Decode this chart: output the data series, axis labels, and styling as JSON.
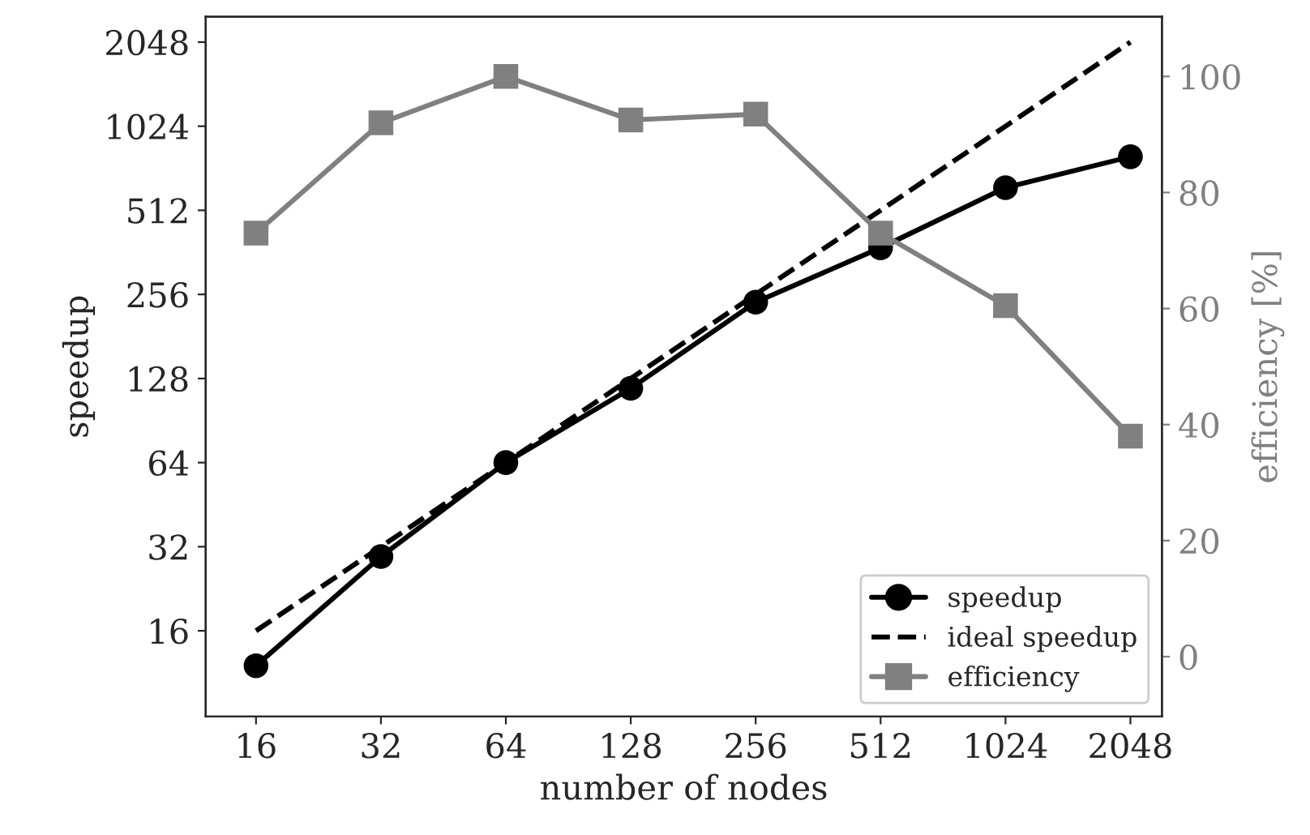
{
  "chart_data": {
    "type": "line",
    "xlabel": "number of nodes",
    "ylabel": "speedup",
    "y2label": "efficiency [%]",
    "log": "xy",
    "grid": false,
    "legend": "bottom right",
    "x": [
      16,
      32,
      64,
      128,
      256,
      512,
      1024,
      2048
    ],
    "xlim": [
      12.1,
      2440
    ],
    "xticks": [
      16,
      32,
      64,
      128,
      256,
      512,
      1024,
      2048
    ],
    "ylim": [
      7.9,
      2525
    ],
    "yticks": [
      16,
      32,
      64,
      128,
      256,
      512,
      1024,
      2048
    ],
    "y2lim": [
      -10.3,
      110.3
    ],
    "y2ticks": [
      0,
      20,
      40,
      60,
      80,
      100
    ],
    "series": [
      {
        "name": "speedup",
        "color": "#000000",
        "marker": "circle",
        "line_style": "solid",
        "values": [
          12,
          29.5,
          64,
          118,
          240,
          376,
          617,
          796
        ]
      },
      {
        "name": "ideal speedup",
        "color": "#000000",
        "marker": "none",
        "line_style": "dashed",
        "values": [
          16,
          32,
          64,
          128,
          256,
          512,
          1024,
          2048
        ]
      },
      {
        "name": "efficiency",
        "color": "#808080",
        "marker": "square",
        "line_style": "solid",
        "axis": "y2",
        "values": [
          73,
          92,
          100,
          92.5,
          93.5,
          73,
          60.5,
          38
        ]
      }
    ]
  }
}
